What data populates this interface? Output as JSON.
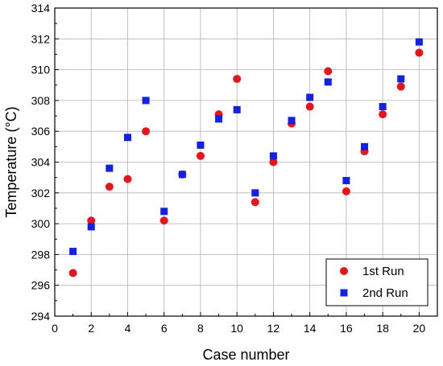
{
  "chart_data": {
    "type": "scatter",
    "title": "",
    "xlabel": "Case number",
    "ylabel": "Temperature (°C)",
    "xlim": [
      0,
      21
    ],
    "ylim": [
      294,
      314
    ],
    "xticks": [
      0,
      2,
      4,
      6,
      8,
      10,
      12,
      14,
      16,
      18,
      20
    ],
    "yticks": [
      294,
      296,
      298,
      300,
      302,
      304,
      306,
      308,
      310,
      312,
      314
    ],
    "grid": true,
    "legend_position": "bottom-right",
    "x": [
      1,
      2,
      3,
      4,
      5,
      6,
      7,
      8,
      9,
      10,
      11,
      12,
      13,
      14,
      15,
      16,
      17,
      18,
      19,
      20
    ],
    "series": [
      {
        "name": "1st Run",
        "marker": "circle",
        "color": "#e8141c",
        "values": [
          296.8,
          300.2,
          302.4,
          302.9,
          306.0,
          300.2,
          303.2,
          304.4,
          307.1,
          309.4,
          301.4,
          304.0,
          306.5,
          307.6,
          309.9,
          302.1,
          304.7,
          307.1,
          308.9,
          311.1
        ]
      },
      {
        "name": "2nd Run",
        "marker": "square",
        "color": "#1420e6",
        "values": [
          298.2,
          299.8,
          303.6,
          305.6,
          308.0,
          300.8,
          303.2,
          305.1,
          306.8,
          307.4,
          302.0,
          304.4,
          306.7,
          308.2,
          309.2,
          302.8,
          305.0,
          307.6,
          309.4,
          311.8
        ]
      }
    ]
  }
}
